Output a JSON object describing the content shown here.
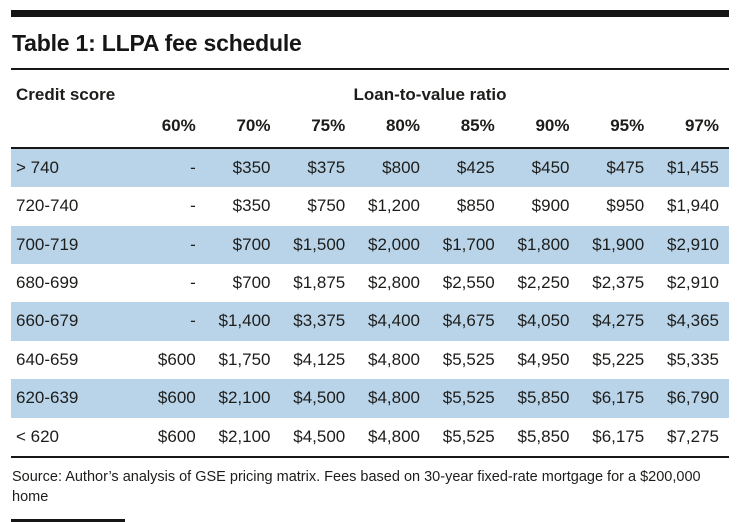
{
  "colors": {
    "row_highlight": "#b9d4e9",
    "rule": "#161616",
    "text": "#1d1d1b"
  },
  "chart_data": {
    "type": "table",
    "title": "Table 1: LLPA fee schedule",
    "row_header": "Credit score",
    "column_group_header": "Loan-to-value ratio",
    "columns": [
      "60%",
      "70%",
      "75%",
      "80%",
      "85%",
      "90%",
      "95%",
      "97%"
    ],
    "rows": [
      {
        "credit_score": "> 740",
        "fees": [
          "-",
          "$350",
          "$375",
          "$800",
          "$425",
          "$450",
          "$475",
          "$1,455"
        ]
      },
      {
        "credit_score": "720-740",
        "fees": [
          "-",
          "$350",
          "$750",
          "$1,200",
          "$850",
          "$900",
          "$950",
          "$1,940"
        ]
      },
      {
        "credit_score": "700-719",
        "fees": [
          "-",
          "$700",
          "$1,500",
          "$2,000",
          "$1,700",
          "$1,800",
          "$1,900",
          "$2,910"
        ]
      },
      {
        "credit_score": "680-699",
        "fees": [
          "-",
          "$700",
          "$1,875",
          "$2,800",
          "$2,550",
          "$2,250",
          "$2,375",
          "$2,910"
        ]
      },
      {
        "credit_score": "660-679",
        "fees": [
          "-",
          "$1,400",
          "$3,375",
          "$4,400",
          "$4,675",
          "$4,050",
          "$4,275",
          "$4,365"
        ]
      },
      {
        "credit_score": "640-659",
        "fees": [
          "$600",
          "$1,750",
          "$4,125",
          "$4,800",
          "$5,525",
          "$4,950",
          "$5,225",
          "$5,335"
        ]
      },
      {
        "credit_score": "620-639",
        "fees": [
          "$600",
          "$2,100",
          "$4,500",
          "$4,800",
          "$5,525",
          "$5,850",
          "$6,175",
          "$6,790"
        ]
      },
      {
        "credit_score": "< 620",
        "fees": [
          "$600",
          "$2,100",
          "$4,500",
          "$4,800",
          "$5,525",
          "$5,850",
          "$6,175",
          "$7,275"
        ]
      }
    ],
    "source_note": "Source: Author’s analysis of GSE pricing matrix. Fees based on 30-year fixed-rate mortgage for a $200,000 home"
  }
}
